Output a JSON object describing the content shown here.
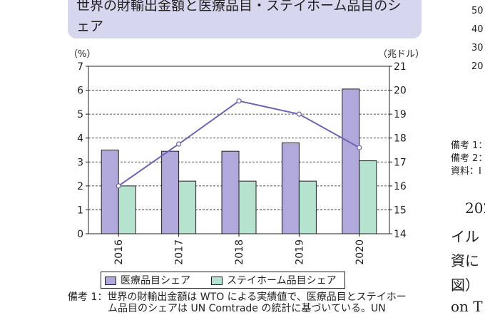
{
  "title": "世界の財輸出金額と医療品目・ステイホーム品目のシェア",
  "chart_data": {
    "type": "bar",
    "categories": [
      "2016",
      "2017",
      "2018",
      "2019",
      "2020"
    ],
    "series": [
      {
        "name": "医療品目シェア",
        "type": "bar",
        "axis": "left",
        "color": "#b1a8dc",
        "values": [
          3.5,
          3.45,
          3.45,
          3.8,
          6.05
        ]
      },
      {
        "name": "ステイホーム品目シェア",
        "type": "bar",
        "axis": "left",
        "color": "#b5e3cf",
        "values": [
          2.0,
          2.2,
          2.2,
          2.2,
          3.05
        ]
      },
      {
        "name": "",
        "type": "line",
        "axis": "right",
        "color": "#6e63b3",
        "values": [
          16.0,
          17.75,
          19.55,
          19.0,
          17.6
        ]
      }
    ],
    "left_unit": "（%）",
    "right_unit": "（兆ドル）",
    "ylim": [
      0,
      7
    ],
    "y_ticks": [
      "0",
      "1",
      "2",
      "3",
      "4",
      "5",
      "6",
      "7"
    ],
    "y2lim": [
      14,
      21
    ],
    "y2_ticks": [
      "14",
      "15",
      "16",
      "17",
      "18",
      "19",
      "20",
      "21"
    ],
    "grid": true,
    "legend_position": "bottom"
  },
  "note": {
    "line1": "備考 1：世界の財輸出金額は WTO による実績値で、医療品目とステイホー",
    "line2": "ム品目のシェアは UN Comtrade の統計に基づいている。UN"
  },
  "right_fragments": {
    "ticks": [
      "50",
      "40",
      "30",
      "20"
    ],
    "notes": [
      "備考 1：",
      "備考 2：",
      "資料：I"
    ],
    "text": [
      "202",
      "イル",
      "資に",
      "図）",
      "on T"
    ]
  }
}
